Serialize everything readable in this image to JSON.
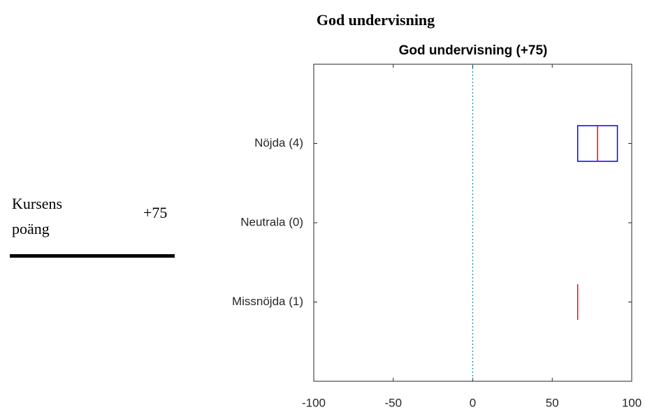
{
  "heading": "God undervisning",
  "score_label": "Kursens poäng",
  "score": "+75",
  "chart_data": {
    "type": "box",
    "title": "God undervisning (+75)",
    "categories": [
      "Nöjda (4)",
      "Neutrala (0)",
      "Missnöjda (1)"
    ],
    "q1": [
      66,
      null,
      66
    ],
    "median": [
      78.5,
      null,
      66
    ],
    "q3": [
      91,
      null,
      66
    ],
    "box_color": "#0000ff",
    "median_color": "#ff0000",
    "reference_line": 0,
    "reference_color": "#0072bd",
    "xlim": [
      -100,
      100
    ],
    "xticks": [
      -100,
      -50,
      0,
      50,
      100
    ]
  }
}
